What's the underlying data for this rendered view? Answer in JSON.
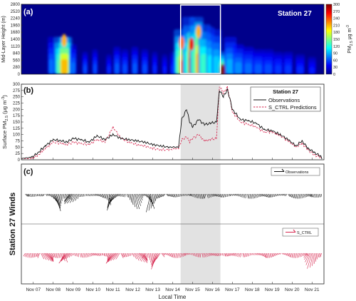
{
  "panels": {
    "a": {
      "label": "(a)",
      "station_label": "Station 27",
      "ylabel": "Mid-Layer Height (m)",
      "yticks": [
        "2800",
        "2520",
        "2240",
        "1960",
        "1680",
        "1400",
        "1120",
        "840",
        "560",
        "280",
        "0"
      ],
      "colorbar": {
        "title": "PM",
        "sub": "2.5",
        "unit": "μg m",
        "sup": "-3",
        "ticks": [
          "300",
          "270",
          "240",
          "210",
          "180",
          "150",
          "120",
          "90",
          "60",
          "30",
          "0"
        ]
      }
    },
    "b": {
      "label": "(b)",
      "ylabel_pre": "Surface PM",
      "ylabel_sub": "2.5",
      "ylabel_post": " (μg m",
      "ylabel_sup": "-3",
      "ylabel_end": ")",
      "legend_title": "Station 27",
      "legend_obs": "Observations",
      "legend_pred": "S_CTRL Predictions"
    },
    "c": {
      "label": "(c)",
      "side_label": "Station 27 Winds",
      "legend_obs": "Observations",
      "legend_pred": "S_CTRL"
    }
  },
  "xaxis": {
    "label": "Local Time",
    "ticks": [
      "Nov 07",
      "Nov 08",
      "Nov 09",
      "Nov 10",
      "Nov 11",
      "Nov 12",
      "Nov 13",
      "Nov 14",
      "Nov 15",
      "Nov 16",
      "Nov 17",
      "Nov 18",
      "Nov 19",
      "Nov 20",
      "Nov 21"
    ]
  },
  "colors": {
    "observations": "#111111",
    "predictions": "#d6264e",
    "highlight": "#e2e2e2"
  },
  "chart_data": [
    {
      "type": "heatmap",
      "title": "",
      "ylabel": "Mid-Layer Height (m)",
      "ylim": [
        0,
        2800
      ],
      "colorbar_range": [
        0,
        300
      ],
      "colorbar_unit": "PM2.5 μg m-3",
      "highlight_days": [
        14.4,
        16.4
      ],
      "hotspots": [
        {
          "day": 8.55,
          "height": 1350,
          "value": 210
        },
        {
          "day": 14.45,
          "height": 1250,
          "value": 230
        },
        {
          "day": 14.95,
          "height": 1200,
          "value": 270
        },
        {
          "day": 15.3,
          "height": 1700,
          "value": 210
        },
        {
          "day": 16.5,
          "height": 150,
          "value": 300
        }
      ]
    },
    {
      "type": "line",
      "title": "",
      "ylabel": "Surface PM2.5 (μg m-3)",
      "ylim": [
        0,
        300
      ],
      "yticks": [
        0,
        25,
        50,
        75,
        100,
        125,
        150,
        175,
        200,
        225,
        250,
        275,
        300
      ],
      "x_unit": "day of November",
      "series": [
        {
          "name": "Observations",
          "x": [
            6.4,
            6.9,
            7.2,
            7.6,
            8.0,
            8.4,
            8.7,
            9.0,
            9.4,
            9.8,
            10.2,
            10.6,
            11.0,
            11.4,
            11.8,
            12.2,
            12.6,
            13.0,
            13.4,
            13.8,
            14.3,
            14.45,
            14.7,
            14.85,
            15.0,
            15.3,
            15.6,
            15.9,
            16.2,
            16.35,
            16.55,
            16.75,
            17.0,
            17.4,
            17.8,
            18.2,
            18.6,
            19.0,
            19.4,
            19.8,
            20.2,
            20.5,
            20.8,
            21.1,
            21.4,
            21.5
          ],
          "values": [
            5,
            10,
            25,
            55,
            80,
            75,
            70,
            85,
            80,
            70,
            95,
            80,
            100,
            85,
            80,
            75,
            70,
            60,
            55,
            50,
            50,
            160,
            200,
            150,
            130,
            160,
            140,
            145,
            150,
            275,
            250,
            280,
            200,
            160,
            155,
            145,
            120,
            115,
            100,
            80,
            55,
            75,
            45,
            30,
            15,
            5
          ]
        },
        {
          "name": "S_CTRL Predictions",
          "x": [
            6.4,
            6.9,
            7.2,
            7.6,
            8.0,
            8.4,
            8.7,
            9.0,
            9.4,
            9.8,
            10.2,
            10.6,
            11.0,
            11.4,
            11.8,
            12.2,
            12.6,
            13.0,
            13.4,
            13.8,
            14.3,
            14.45,
            14.7,
            14.85,
            15.0,
            15.3,
            15.6,
            15.9,
            16.2,
            16.35,
            16.55,
            16.75,
            17.0,
            17.4,
            17.8,
            18.2,
            18.6,
            19.0,
            19.4,
            19.8,
            20.2,
            20.5,
            20.8,
            21.1,
            21.4,
            21.5
          ],
          "values": [
            5,
            5,
            15,
            45,
            70,
            65,
            60,
            70,
            65,
            60,
            80,
            70,
            130,
            85,
            70,
            60,
            55,
            45,
            40,
            40,
            45,
            80,
            90,
            70,
            85,
            100,
            75,
            80,
            85,
            290,
            265,
            290,
            190,
            150,
            140,
            130,
            110,
            110,
            95,
            75,
            50,
            65,
            40,
            20,
            10,
            5
          ]
        }
      ]
    },
    {
      "type": "barbs",
      "title": "",
      "side_label": "Station 27 Winds",
      "series": [
        {
          "name": "Observations",
          "strong_events_days": [
            8.1,
            9.0,
            11.0,
            12.1,
            12.9
          ]
        },
        {
          "name": "S_CTRL",
          "strong_events_days": [
            7.6,
            8.7,
            11.1,
            12.3,
            13.2,
            21.0
          ]
        }
      ]
    }
  ]
}
